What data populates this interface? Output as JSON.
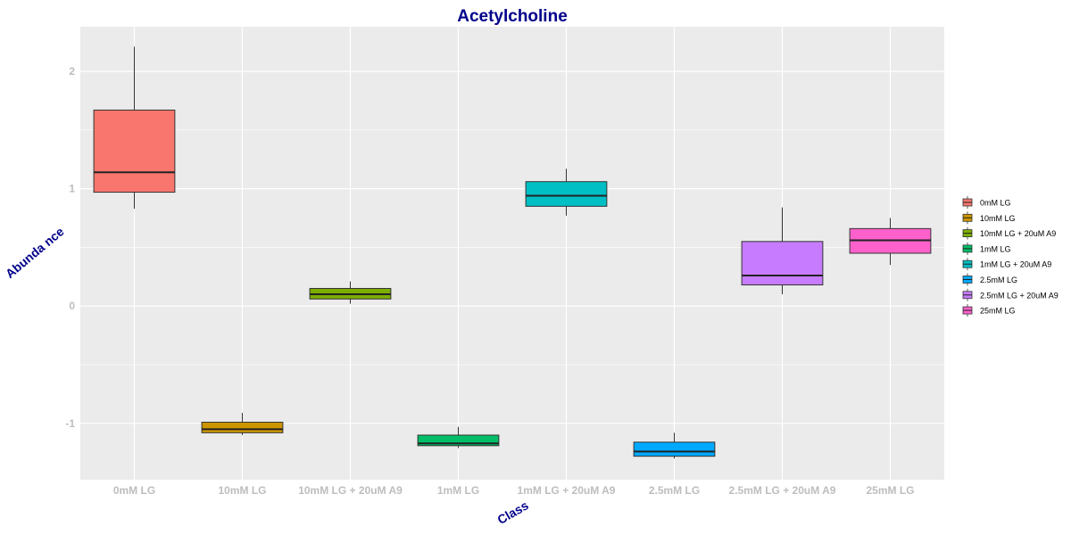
{
  "chart_data": {
    "type": "box",
    "title": "Acetylcholine",
    "xlabel": "Class",
    "ylabel": "Abunda nce",
    "categories": [
      "0mM LG",
      "10mM LG",
      "10mM LG + 20uM A9",
      "1mM LG",
      "1mM LG + 20uM A9",
      "2.5mM LG",
      "2.5mM LG + 20uM A9",
      "25mM LG"
    ],
    "yticks": [
      -1,
      0,
      1,
      2
    ],
    "ylim": [
      -1.48,
      2.38
    ],
    "grid": true,
    "legend_position": "right",
    "legend": [
      "0mM LG",
      "10mM LG",
      "10mM LG + 20uM A9",
      "1mM LG",
      "1mM LG + 20uM A9",
      "2.5mM LG",
      "2.5mM LG + 20uM A9",
      "25mM LG"
    ],
    "boxes": [
      {
        "category": "0mM LG",
        "min": 0.83,
        "q1": 0.97,
        "median": 1.14,
        "q3": 1.67,
        "max": 2.21,
        "color": "#F8766D"
      },
      {
        "category": "10mM LG",
        "min": -1.1,
        "q1": -1.08,
        "median": -1.05,
        "q3": -0.99,
        "max": -0.91,
        "color": "#CD9600"
      },
      {
        "category": "10mM LG + 20uM A9",
        "min": 0.02,
        "q1": 0.06,
        "median": 0.1,
        "q3": 0.15,
        "max": 0.21,
        "color": "#7CAE00"
      },
      {
        "category": "1mM LG",
        "min": -1.21,
        "q1": -1.19,
        "median": -1.17,
        "q3": -1.1,
        "max": -1.03,
        "color": "#00BE67"
      },
      {
        "category": "1mM LG + 20uM A9",
        "min": 0.77,
        "q1": 0.85,
        "median": 0.94,
        "q3": 1.06,
        "max": 1.17,
        "color": "#00BFC4"
      },
      {
        "category": "2.5mM LG",
        "min": -1.3,
        "q1": -1.28,
        "median": -1.24,
        "q3": -1.16,
        "max": -1.08,
        "color": "#00A9FF"
      },
      {
        "category": "2.5mM LG + 20uM A9",
        "min": 0.1,
        "q1": 0.18,
        "median": 0.26,
        "q3": 0.55,
        "max": 0.84,
        "color": "#C77CFF"
      },
      {
        "category": "25mM LG",
        "min": 0.35,
        "q1": 0.45,
        "median": 0.56,
        "q3": 0.66,
        "max": 0.75,
        "color": "#FF61CC"
      }
    ]
  },
  "colors": {
    "title": "#00008B",
    "axis_title": "#00008B",
    "tick_label": "#BDBDBD",
    "panel_background": "#EBEBEB",
    "grid": "#FFFFFF"
  }
}
